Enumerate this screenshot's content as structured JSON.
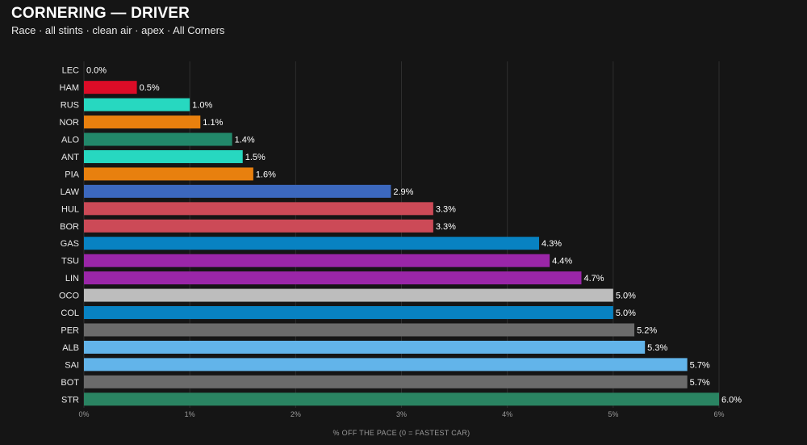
{
  "header": {
    "title": "CORNERING — DRIVER",
    "subtitle": "Race · all stints · clean air · apex · All Corners"
  },
  "chart_data": {
    "type": "bar",
    "orientation": "horizontal",
    "title": "CORNERING — DRIVER",
    "subtitle": "Race · all stints · clean air · apex · All Corners",
    "xlabel": "% OFF THE PACE  (0 = FASTEST CAR)",
    "ylabel": "",
    "xlim": [
      0,
      6
    ],
    "xticks": [
      0,
      1,
      2,
      3,
      4,
      5,
      6
    ],
    "xtick_labels": [
      "0%",
      "1%",
      "2%",
      "3%",
      "4%",
      "5%",
      "6%"
    ],
    "grid": "vertical",
    "legend": "none",
    "categories": [
      "LEC",
      "HAM",
      "RUS",
      "NOR",
      "ALO",
      "ANT",
      "PIA",
      "LAW",
      "HUL",
      "BOR",
      "GAS",
      "TSU",
      "LIN",
      "OCO",
      "COL",
      "PER",
      "ALB",
      "SAI",
      "BOT",
      "STR"
    ],
    "values": [
      0.0,
      0.5,
      1.0,
      1.1,
      1.4,
      1.5,
      1.6,
      2.9,
      3.3,
      3.3,
      4.3,
      4.4,
      4.7,
      5.0,
      5.0,
      5.2,
      5.3,
      5.7,
      5.7,
      6.0
    ],
    "value_labels": [
      "0.0%",
      "0.5%",
      "1.0%",
      "1.1%",
      "1.4%",
      "1.5%",
      "1.6%",
      "2.9%",
      "3.3%",
      "3.3%",
      "4.3%",
      "4.4%",
      "4.7%",
      "5.0%",
      "5.0%",
      "5.2%",
      "5.3%",
      "5.7%",
      "5.7%",
      "6.0%"
    ],
    "colors": [
      "#dc0000",
      "#dc0c27",
      "#27d8c0",
      "#e8800e",
      "#22886a",
      "#27d8c0",
      "#e8800e",
      "#3c68be",
      "#cc4a57",
      "#cc4a57",
      "#0882c2",
      "#9a26a8",
      "#9a26a8",
      "#bdbdbd",
      "#0882c2",
      "#6b6b6b",
      "#62b4ea",
      "#62b4ea",
      "#6b6b6b",
      "#2a8462"
    ]
  }
}
